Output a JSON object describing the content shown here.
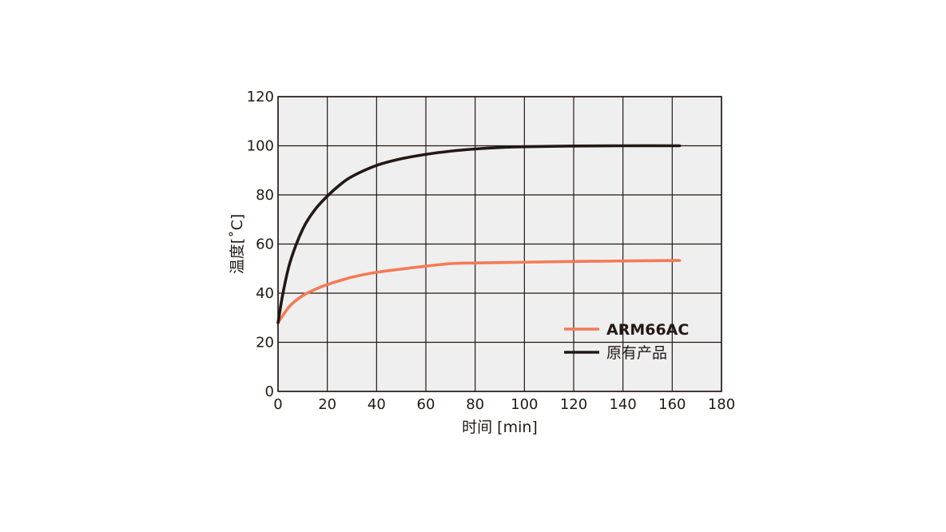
{
  "chart_data": {
    "type": "line",
    "xlabel": "时间 [min]",
    "ylabel": "温度[˚C]",
    "xlim": [
      0,
      180
    ],
    "ylim": [
      0,
      120
    ],
    "xticks": [
      "0",
      "20",
      "40",
      "60",
      "80",
      "100",
      "120",
      "140",
      "160",
      "180"
    ],
    "yticks": [
      "0",
      "20",
      "40",
      "60",
      "80",
      "100",
      "120"
    ],
    "grid": true,
    "legend_position": "bottom-right",
    "series": [
      {
        "name": "ARM66AC",
        "color": "#f47a55",
        "x": [
          0,
          2,
          5,
          10,
          15,
          20,
          30,
          40,
          50,
          60,
          70,
          80,
          100,
          120,
          140,
          163
        ],
        "y": [
          28,
          31,
          35,
          39,
          41.5,
          43.5,
          46.5,
          48.5,
          49.8,
          51,
          52,
          52.3,
          52.6,
          52.9,
          53.1,
          53.3
        ]
      },
      {
        "name": "原有产品",
        "color": "#231815",
        "x": [
          0,
          2,
          5,
          10,
          15,
          20,
          25,
          30,
          40,
          50,
          60,
          70,
          80,
          90,
          100,
          120,
          140,
          163
        ],
        "y": [
          28,
          40,
          53,
          66,
          74,
          79.5,
          84,
          87.5,
          92,
          94.7,
          96.5,
          97.8,
          98.7,
          99.3,
          99.6,
          99.9,
          100,
          100
        ]
      }
    ]
  }
}
